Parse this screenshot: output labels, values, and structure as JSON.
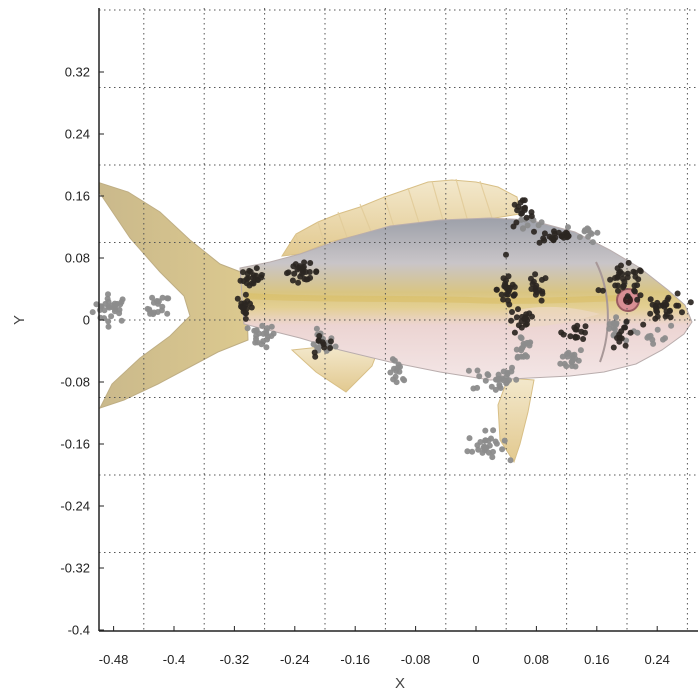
{
  "chart_data": {
    "type": "scatter",
    "title": "",
    "xlabel": "X",
    "ylabel": "Y",
    "xlim": [
      -0.51,
      0.29
    ],
    "ylim": [
      -0.4,
      0.405
    ],
    "x_ticks": [
      -0.48,
      -0.4,
      -0.32,
      -0.24,
      -0.16,
      -0.08,
      0,
      0.08,
      0.16,
      0.24
    ],
    "x_tick_labels": [
      "-0.48",
      "-0.4",
      "-0.32",
      "-0.24",
      "-0.16",
      "-0.08",
      "0",
      "0.08",
      "0.16",
      "0.24"
    ],
    "y_ticks": [
      -0.4,
      -0.32,
      -0.24,
      -0.16,
      -0.08,
      0,
      0.08,
      0.16,
      0.24,
      0.32
    ],
    "y_tick_labels": [
      "-0.4",
      "-0.32",
      "-0.24",
      "-0.16",
      "-0.08",
      "0",
      "0.08",
      "0.16",
      "0.24",
      "0.32"
    ],
    "grid": true,
    "grid_style": "dotted",
    "background_image": "fish-photo",
    "colors": {
      "dark_points": "#2b2622",
      "light_points": "#8c8c8c",
      "grid": "#555555",
      "axis": "#222222"
    },
    "series": [
      {
        "color": "dark",
        "clusters": [
          {
            "x": -0.297,
            "y": 0.053,
            "spread": [
              0.01,
              0.008
            ],
            "n": 22
          },
          {
            "x": -0.305,
            "y": 0.018,
            "spread": [
              0.008,
              0.01
            ],
            "n": 16
          },
          {
            "x": -0.231,
            "y": 0.062,
            "spread": [
              0.016,
              0.007
            ],
            "n": 26
          },
          {
            "x": 0.06,
            "y": 0.137,
            "spread": [
              0.01,
              0.012
            ],
            "n": 18
          },
          {
            "x": 0.108,
            "y": 0.108,
            "spread": [
              0.016,
              0.006
            ],
            "n": 22
          },
          {
            "x": 0.043,
            "y": 0.04,
            "spread": [
              0.01,
              0.018
            ],
            "n": 26
          },
          {
            "x": 0.08,
            "y": 0.04,
            "spread": [
              0.01,
              0.012
            ],
            "n": 16
          },
          {
            "x": 0.06,
            "y": -0.003,
            "spread": [
              0.012,
              0.012
            ],
            "n": 18
          },
          {
            "x": 0.198,
            "y": 0.048,
            "spread": [
              0.018,
              0.014
            ],
            "n": 34
          },
          {
            "x": 0.252,
            "y": 0.017,
            "spread": [
              0.018,
              0.012
            ],
            "n": 32
          },
          {
            "x": 0.133,
            "y": -0.015,
            "spread": [
              0.012,
              0.007
            ],
            "n": 14
          },
          {
            "x": 0.195,
            "y": -0.02,
            "spread": [
              0.01,
              0.01
            ],
            "n": 12
          },
          {
            "x": -0.203,
            "y": -0.032,
            "spread": [
              0.01,
              0.01
            ],
            "n": 10
          }
        ]
      },
      {
        "color": "light",
        "clusters": [
          {
            "x": -0.483,
            "y": 0.015,
            "spread": [
              0.016,
              0.012
            ],
            "n": 30
          },
          {
            "x": -0.42,
            "y": 0.015,
            "spread": [
              0.01,
              0.012
            ],
            "n": 18
          },
          {
            "x": -0.284,
            "y": -0.02,
            "spread": [
              0.012,
              0.01
            ],
            "n": 22
          },
          {
            "x": -0.205,
            "y": -0.03,
            "spread": [
              0.012,
              0.01
            ],
            "n": 20
          },
          {
            "x": -0.103,
            "y": -0.07,
            "spread": [
              0.008,
              0.012
            ],
            "n": 14
          },
          {
            "x": 0.025,
            "y": -0.075,
            "spread": [
              0.02,
              0.012
            ],
            "n": 30
          },
          {
            "x": 0.062,
            "y": -0.035,
            "spread": [
              0.01,
              0.015
            ],
            "n": 18
          },
          {
            "x": 0.128,
            "y": -0.05,
            "spread": [
              0.01,
              0.01
            ],
            "n": 18
          },
          {
            "x": 0.148,
            "y": 0.113,
            "spread": [
              0.01,
              0.008
            ],
            "n": 12
          },
          {
            "x": 0.07,
            "y": 0.128,
            "spread": [
              0.01,
              0.006
            ],
            "n": 10
          },
          {
            "x": 0.013,
            "y": -0.163,
            "spread": [
              0.016,
              0.012
            ],
            "n": 28
          },
          {
            "x": 0.184,
            "y": -0.012,
            "spread": [
              0.012,
              0.012
            ],
            "n": 16
          },
          {
            "x": 0.24,
            "y": -0.018,
            "spread": [
              0.012,
              0.008
            ],
            "n": 10
          }
        ]
      }
    ]
  }
}
